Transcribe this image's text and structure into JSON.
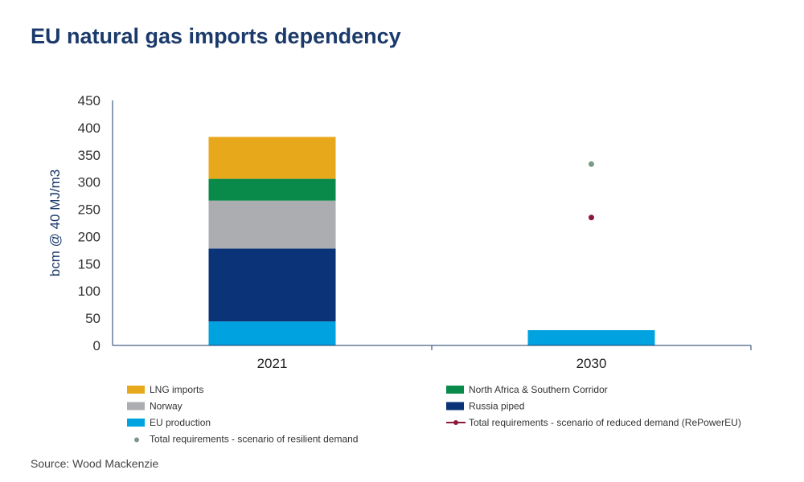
{
  "title": "EU natural gas imports dependency",
  "source": "Source: Wood Mackenzie",
  "chart_data": {
    "type": "bar",
    "stacked": true,
    "categories": [
      "2021",
      "2030"
    ],
    "ylabel": "bcm @ 40 MJ/m3",
    "ylim": [
      0,
      450
    ],
    "yticks": [
      0,
      50,
      100,
      150,
      200,
      250,
      300,
      350,
      400,
      450
    ],
    "grid": false,
    "series": [
      {
        "name": "EU production",
        "color": "#00a3e0",
        "values": [
          44,
          28
        ]
      },
      {
        "name": "Russia piped",
        "color": "#0a3378",
        "values": [
          134,
          0
        ]
      },
      {
        "name": "Norway",
        "color": "#acadb0",
        "values": [
          88,
          0
        ]
      },
      {
        "name": "North Africa & Southern Corridor",
        "color": "#0a8a4a",
        "values": [
          40,
          0
        ]
      },
      {
        "name": "LNG imports",
        "color": "#e8a81b",
        "values": [
          77,
          0
        ]
      }
    ],
    "points": [
      {
        "name": "Total requirements - scenario of reduced demand (RePowerEU)",
        "color": "#8b1a3a",
        "category": "2030",
        "value": 235,
        "marker": "line-dot"
      },
      {
        "name": "Total requirements - scenario of resilient demand",
        "color": "#7a9a85",
        "category": "2030",
        "value": 333,
        "marker": "dot"
      }
    ],
    "legend": {
      "placement": "bottom",
      "order": [
        "LNG imports",
        "North Africa & Southern Corridor",
        "Norway",
        "Russia piped",
        "EU production",
        "Total requirements - scenario of reduced demand (RePowerEU)",
        "Total requirements - scenario of resilient demand"
      ]
    }
  }
}
